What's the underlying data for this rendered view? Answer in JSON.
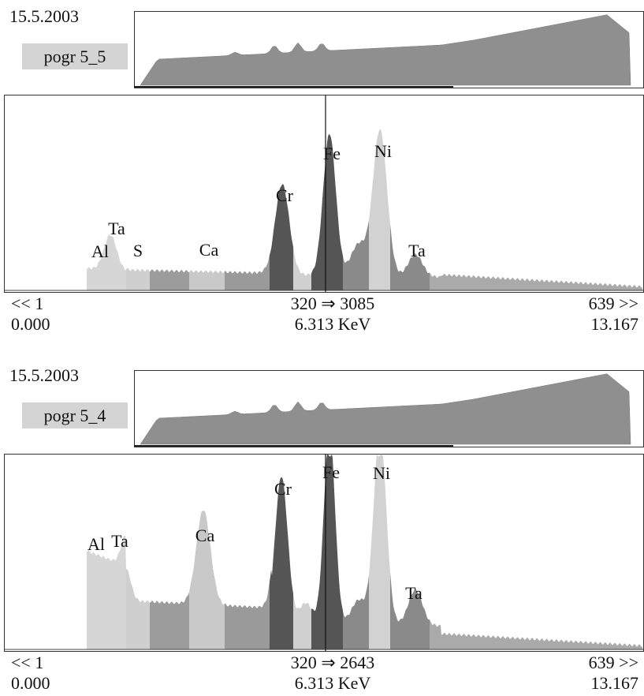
{
  "panels": [
    {
      "date": "15.5.2003",
      "name": "pogr 5_5",
      "peaks": [
        "Al",
        "Ta",
        "S",
        "Ca",
        "Cr",
        "Fe",
        "Ni",
        "Ta"
      ],
      "channel_left": "<< 1",
      "channel_cursor": "320 ⇒ 3085",
      "channel_right": "639 >>",
      "energy_left": "0.000",
      "energy_cursor": "6.313 KeV",
      "energy_right": "13.167"
    },
    {
      "date": "15.5.2003",
      "name": "pogr 5_4",
      "peaks": [
        "Al",
        "Ta",
        "Ca",
        "Cr",
        "Fe",
        "Ni",
        "Ta"
      ],
      "channel_left": "<< 1",
      "channel_cursor": "320 ⇒ 2643",
      "channel_right": "639 >>",
      "energy_left": "0.000",
      "energy_cursor": "6.313 KeV",
      "energy_right": "13.167"
    }
  ]
}
